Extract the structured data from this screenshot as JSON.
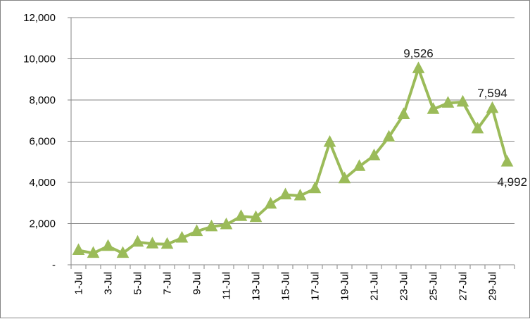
{
  "chart_data": {
    "type": "line",
    "title": "",
    "xlabel": "",
    "ylabel": "",
    "x": [
      "1-Jul",
      "2-Jul",
      "3-Jul",
      "4-Jul",
      "5-Jul",
      "6-Jul",
      "7-Jul",
      "8-Jul",
      "9-Jul",
      "10-Jul",
      "11-Jul",
      "12-Jul",
      "13-Jul",
      "14-Jul",
      "15-Jul",
      "16-Jul",
      "17-Jul",
      "18-Jul",
      "19-Jul",
      "20-Jul",
      "21-Jul",
      "22-Jul",
      "23-Jul",
      "24-Jul",
      "25-Jul",
      "26-Jul",
      "27-Jul",
      "28-Jul",
      "29-Jul",
      "30-Jul"
    ],
    "x_tick_labels": [
      "1-Jul",
      "3-Jul",
      "5-Jul",
      "7-Jul",
      "9-Jul",
      "11-Jul",
      "13-Jul",
      "15-Jul",
      "17-Jul",
      "19-Jul",
      "21-Jul",
      "23-Jul",
      "25-Jul",
      "27-Jul",
      "29-Jul"
    ],
    "series": [
      {
        "values": [
          700,
          560,
          900,
          560,
          1100,
          1020,
          1000,
          1300,
          1620,
          1850,
          1950,
          2350,
          2300,
          2950,
          3400,
          3350,
          3700,
          5950,
          4180,
          4780,
          5300,
          6200,
          7300,
          9526,
          7550,
          7850,
          7900,
          6600,
          7594,
          4992
        ],
        "color": "#9bbb59"
      }
    ],
    "ylim": [
      0,
      12000
    ],
    "y_ticks": [
      0,
      2000,
      4000,
      6000,
      8000,
      10000,
      12000
    ],
    "y_tick_labels": [
      "-",
      "2,000",
      "4,000",
      "6,000",
      "8,000",
      "10,000",
      "12,000"
    ],
    "annotations": [
      {
        "index": 23,
        "text": "9,526"
      },
      {
        "index": 28,
        "text": "7,594"
      },
      {
        "index": 29,
        "text": "4,992"
      }
    ],
    "grid": "horizontal",
    "legend": "none",
    "gridline_color": "#868686",
    "axis_color": "#868686"
  }
}
